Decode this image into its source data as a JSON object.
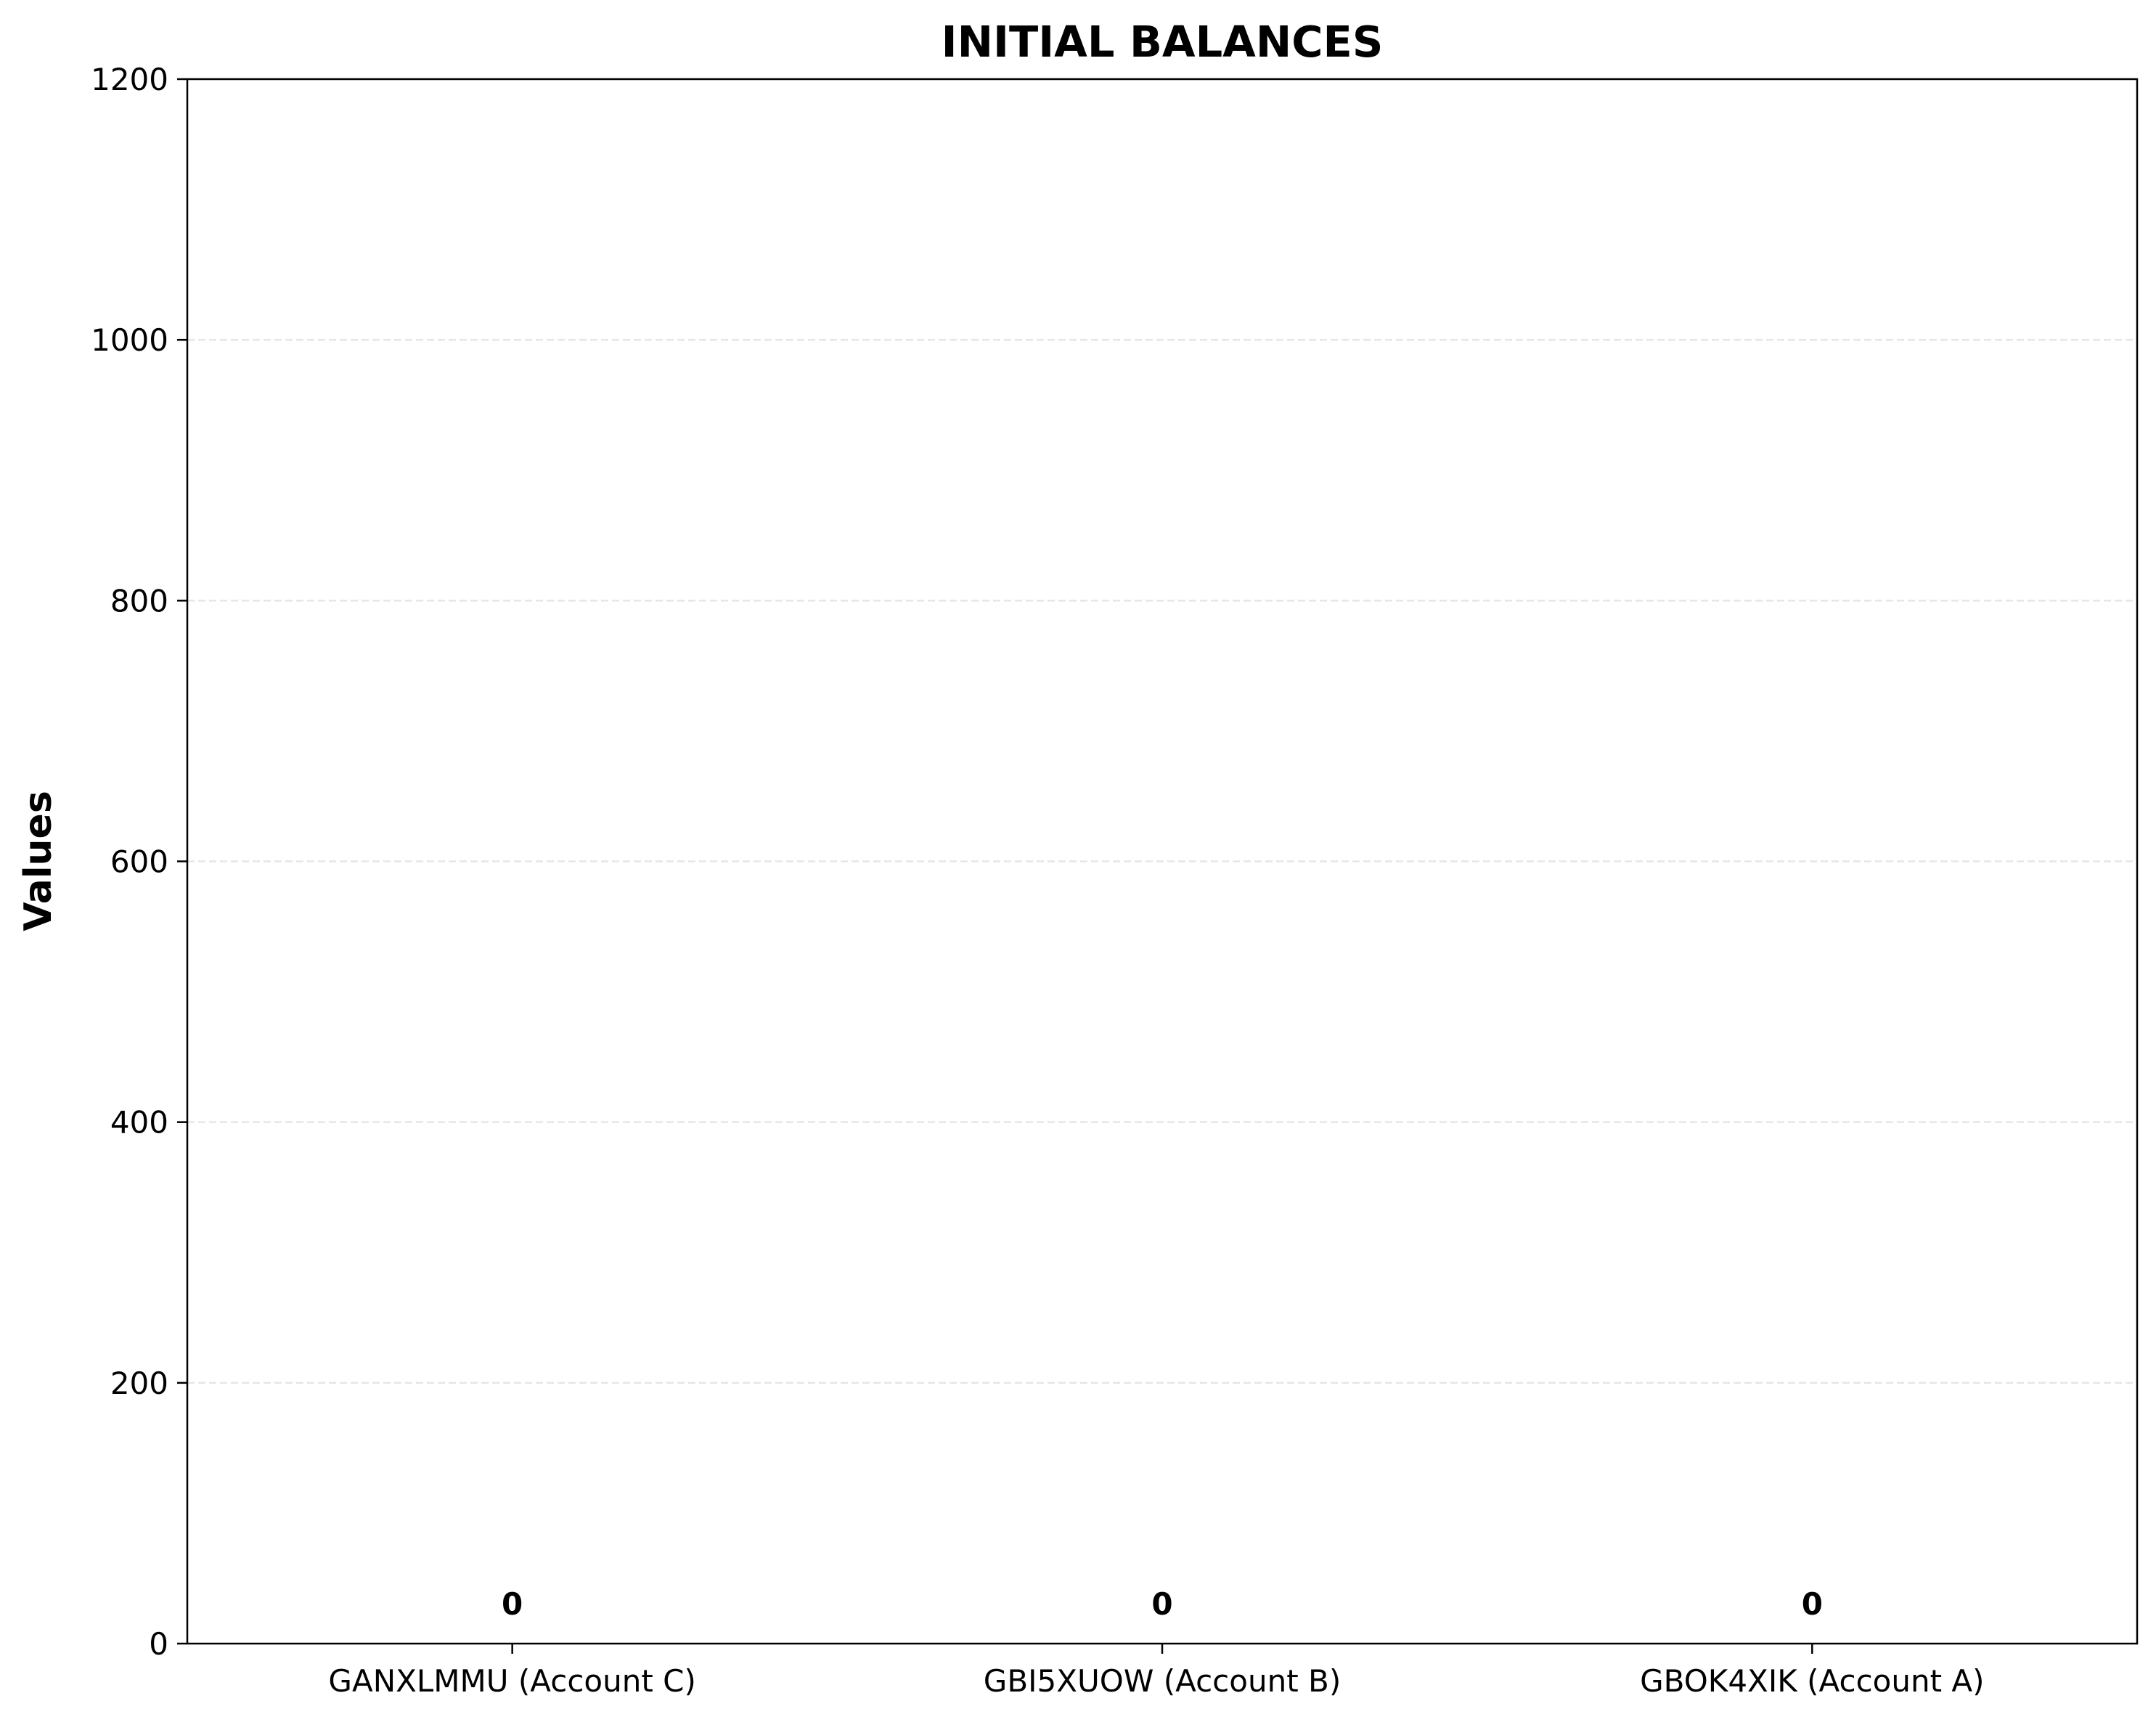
{
  "chart_data": {
    "type": "bar",
    "title": "INITIAL BALANCES",
    "xlabel": "",
    "ylabel": "Values",
    "categories": [
      "GANXLMMU (Account C)",
      "GBI5XUOW (Account B)",
      "GBOK4XIK (Account A)"
    ],
    "values": [
      0,
      0,
      0
    ],
    "value_labels": [
      "0",
      "0",
      "0"
    ],
    "ylim": [
      0,
      1200
    ],
    "yticks": [
      0,
      200,
      400,
      600,
      800,
      1000,
      1200
    ],
    "ytick_labels": [
      "0",
      "200",
      "400",
      "600",
      "800",
      "1000",
      "1200"
    ],
    "grid": "y-dashed",
    "legend": "none",
    "colors": {
      "grid": "#e6e6e6",
      "axis": "#000000",
      "text": "#000000",
      "background": "#ffffff"
    }
  }
}
